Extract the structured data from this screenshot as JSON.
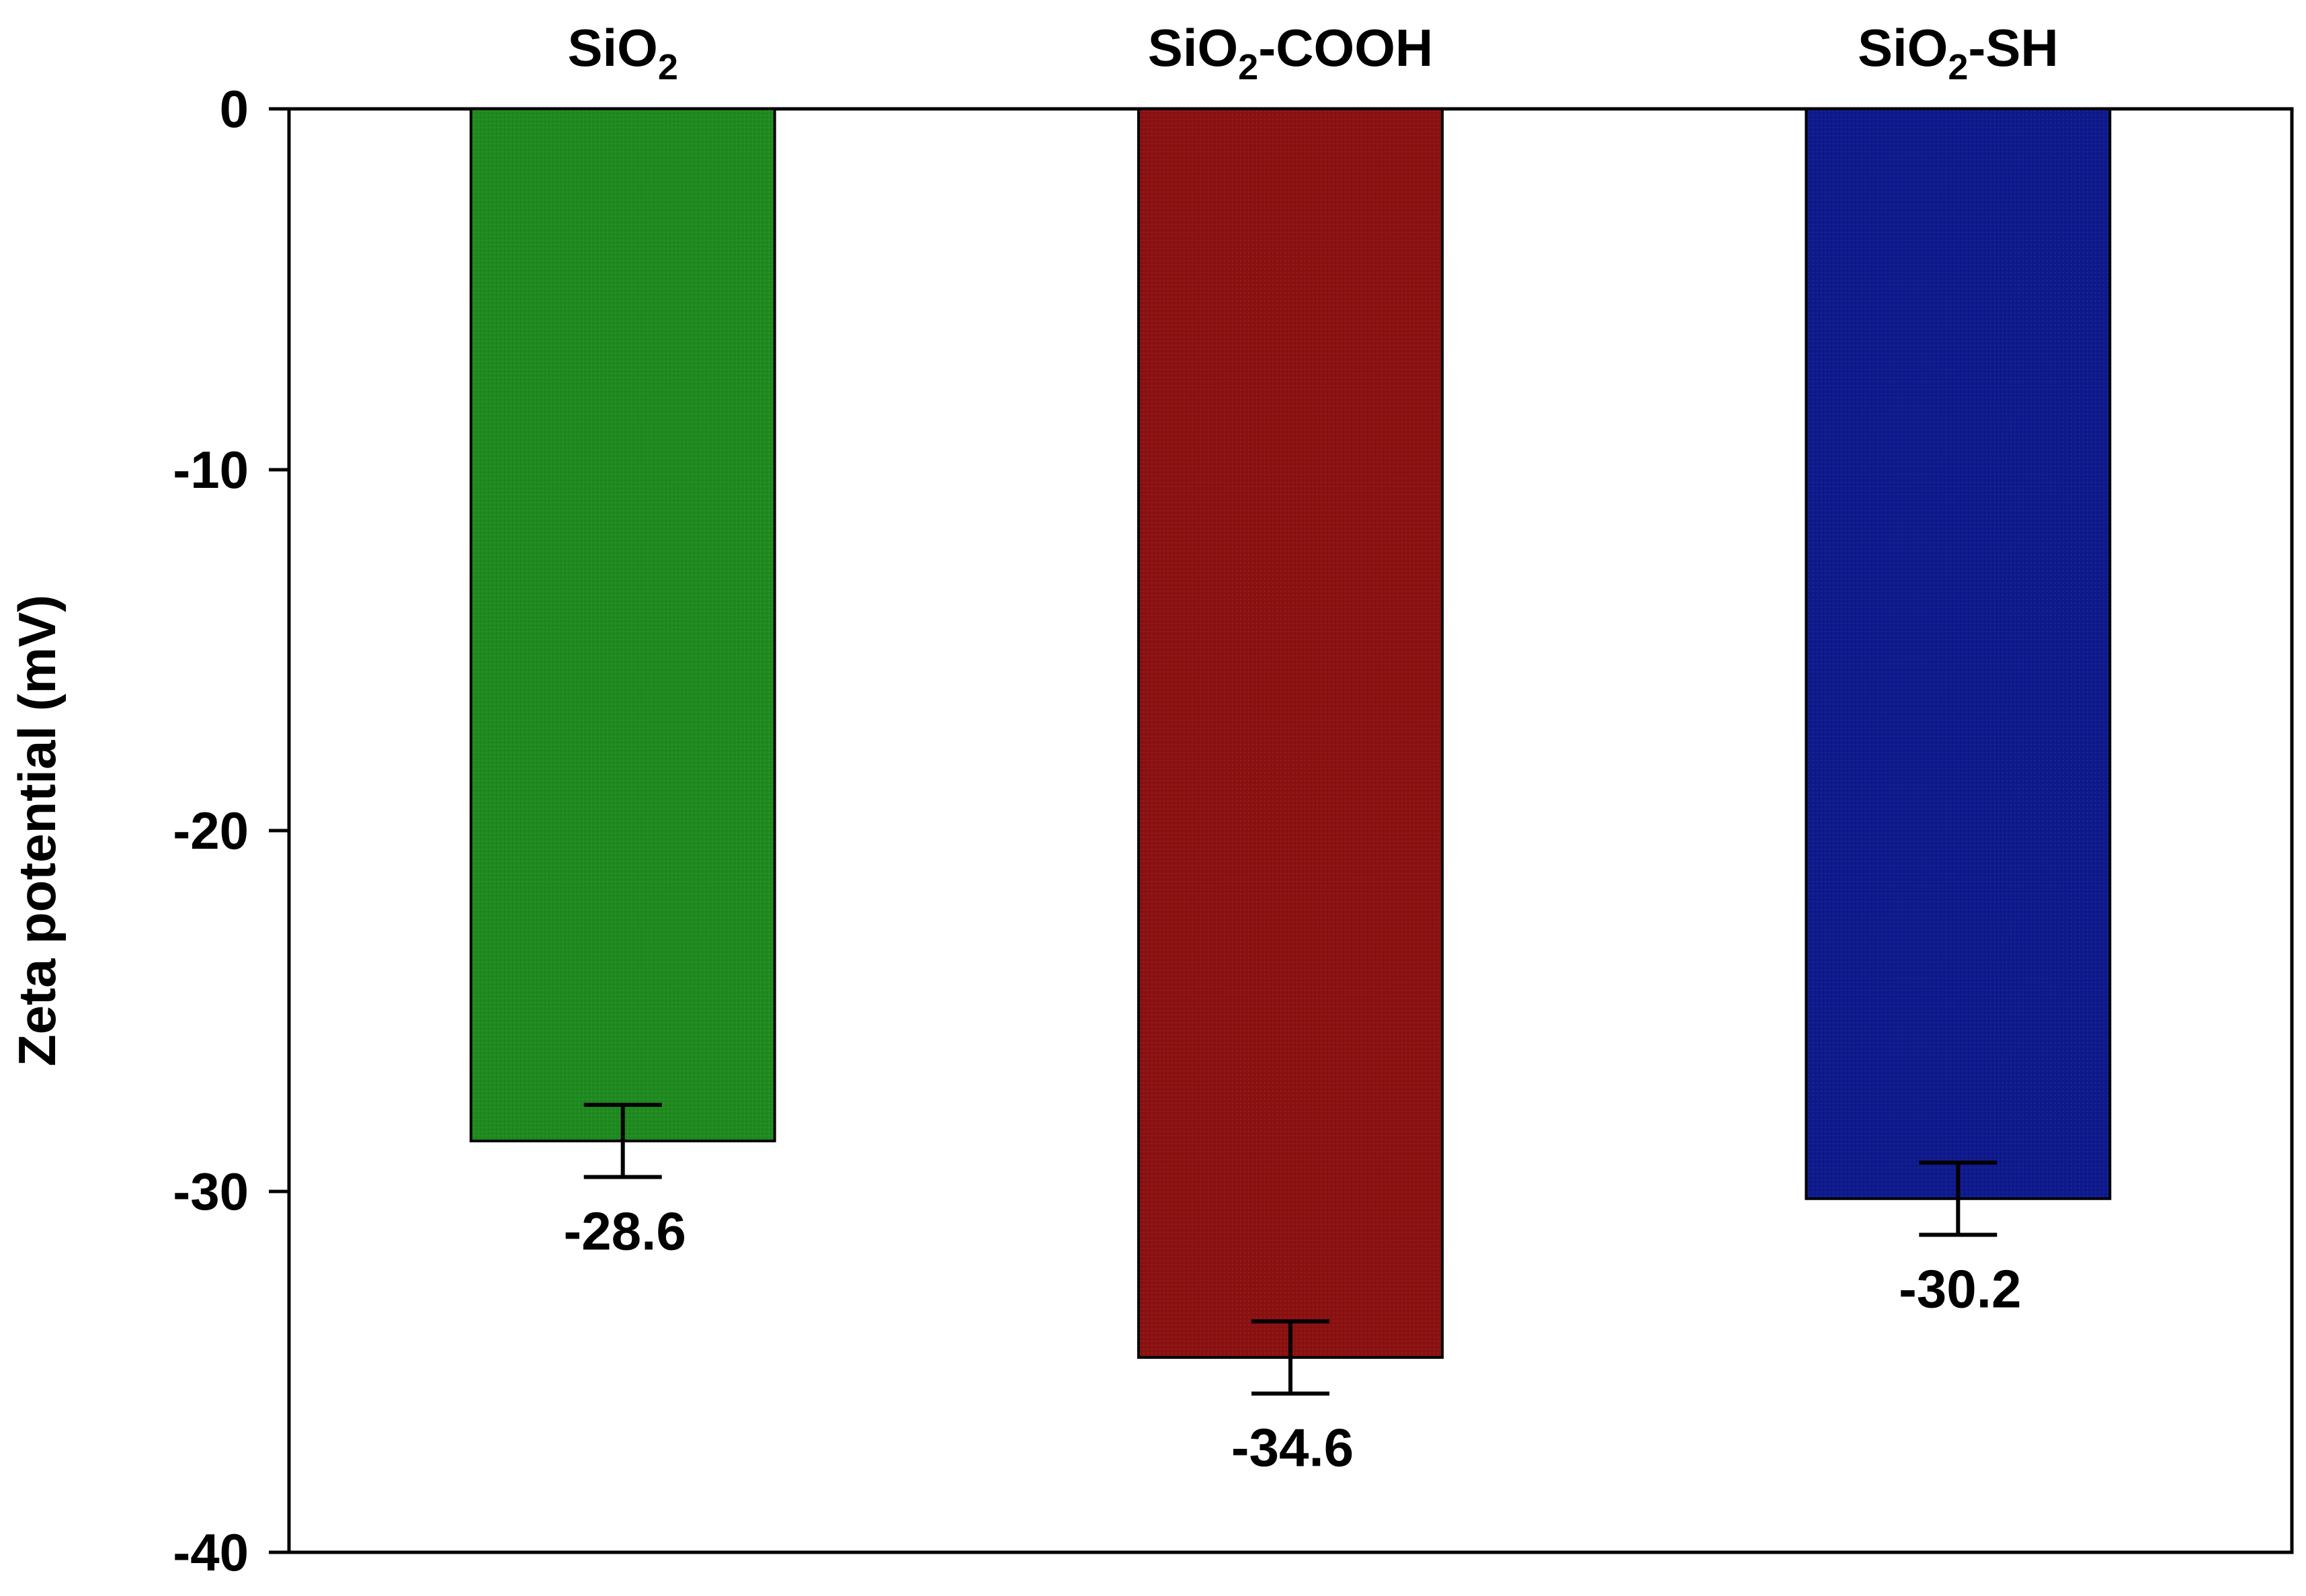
{
  "chart_data": {
    "type": "bar",
    "title": "",
    "xlabel": "",
    "ylabel": "Zeta potential (mV)",
    "ylim": [
      -40,
      0
    ],
    "yticks": [
      0,
      -10,
      -20,
      -30,
      -40
    ],
    "categories": [
      {
        "base": "SiO",
        "sub": "2",
        "suffix": ""
      },
      {
        "base": "SiO",
        "sub": "2",
        "suffix": "-COOH"
      },
      {
        "base": "SiO",
        "sub": "2",
        "suffix": "-SH"
      }
    ],
    "values": [
      -28.6,
      -34.6,
      -30.2
    ],
    "errors": [
      1.0,
      1.0,
      1.0
    ],
    "data_labels": [
      "-28.6",
      "-34.6",
      "-30.2"
    ],
    "colors": [
      "#1f8a1f",
      "#8b1111",
      "#0e1a8c"
    ],
    "grid": false,
    "category_axis_position": "top"
  }
}
